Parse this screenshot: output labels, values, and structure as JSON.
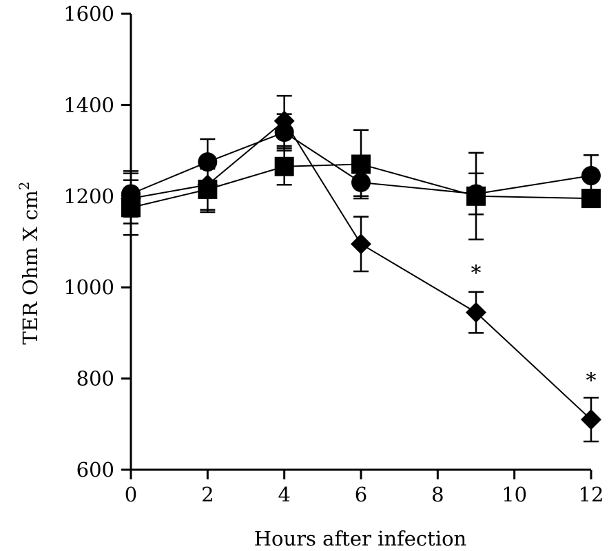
{
  "chart_data": {
    "type": "line",
    "title": "",
    "xlabel": "Hours after infection",
    "ylabel": "TER Ohm X cm",
    "ylabel_superscript": "2",
    "xlim": [
      0,
      12
    ],
    "ylim": [
      600,
      1600
    ],
    "xticks": [
      0,
      2,
      4,
      6,
      8,
      10,
      12
    ],
    "yticks": [
      600,
      800,
      1000,
      1200,
      1400,
      1600
    ],
    "grid": false,
    "legend": "none",
    "series": [
      {
        "marker": "circle",
        "x": [
          0,
          2,
          4,
          6,
          9,
          12
        ],
        "y": [
          1205,
          1275,
          1340,
          1230,
          1205,
          1245
        ],
        "err": [
          50,
          50,
          40,
          30,
          45,
          45
        ]
      },
      {
        "marker": "square",
        "x": [
          0,
          2,
          4,
          6,
          9,
          12
        ],
        "y": [
          1175,
          1215,
          1265,
          1270,
          1200,
          1195
        ],
        "err": [
          60,
          45,
          40,
          75,
          95,
          0
        ]
      },
      {
        "marker": "diamond",
        "x": [
          0,
          2,
          4,
          6,
          9,
          12
        ],
        "y": [
          1195,
          1225,
          1365,
          1095,
          945,
          710
        ],
        "err": [
          55,
          60,
          55,
          60,
          45,
          48
        ]
      }
    ],
    "annotations": [
      {
        "text": "*",
        "x": 9,
        "y": 1040
      },
      {
        "text": "*",
        "x": 12,
        "y": 805
      }
    ]
  }
}
